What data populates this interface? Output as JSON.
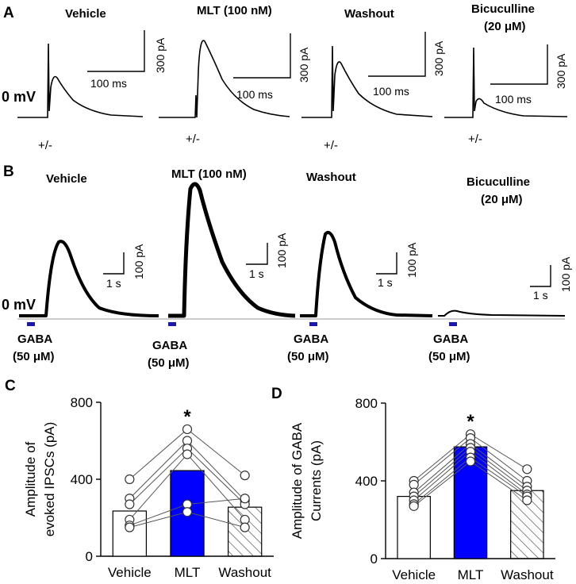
{
  "panelA": {
    "letter": "A",
    "zero_label": "0 mV",
    "stim_label": "+/-",
    "scale_time": "100 ms",
    "scale_amp": "300 pA",
    "conditions": [
      {
        "line1": "Vehicle",
        "line2": ""
      },
      {
        "line1": "MLT (100 nM)",
        "line2": ""
      },
      {
        "line1": "Washout",
        "line2": ""
      },
      {
        "line1": "Bicuculline",
        "line2": "(20 μM)"
      }
    ]
  },
  "panelB": {
    "letter": "B",
    "zero_label": "0 mV",
    "scale_time": "1 s",
    "scale_amp": "100 pA",
    "drug_line1": "GABA",
    "drug_line2": "(50 μM)",
    "drug_bar_color": "#1a1aa6",
    "conditions": [
      {
        "line1": "Vehicle",
        "line2": ""
      },
      {
        "line1": "MLT (100 nM)",
        "line2": ""
      },
      {
        "line1": "Washout",
        "line2": ""
      },
      {
        "line1": "Bicuculline",
        "line2": "(20 μM)"
      }
    ]
  },
  "chart_data": [
    {
      "panel": "C",
      "type": "bar",
      "ylabel_line1": "Amplitude of",
      "ylabel_line2": "evoked IPSCs (pA)",
      "categories": [
        "Vehicle",
        "MLT",
        "Washout"
      ],
      "values": [
        235,
        445,
        255
      ],
      "bar_styles": [
        "open",
        "filled",
        "hatched"
      ],
      "bar_color": "#0000ff",
      "ylim": [
        0,
        800
      ],
      "yticks": [
        "0",
        "400",
        "800"
      ],
      "significance": {
        "category": "MLT",
        "label": "*"
      },
      "individual_series": [
        [
          400,
          660,
          420
        ],
        [
          300,
          600,
          290
        ],
        [
          270,
          560,
          270
        ],
        [
          190,
          530,
          190
        ],
        [
          160,
          270,
          300
        ],
        [
          150,
          230,
          150
        ]
      ]
    },
    {
      "panel": "D",
      "type": "bar",
      "ylabel_line1": "Amplitude of GABA",
      "ylabel_line2": "Currents (pA)",
      "categories": [
        "Vehicle",
        "MLT",
        "Washout"
      ],
      "values": [
        320,
        575,
        350
      ],
      "bar_styles": [
        "open",
        "filled",
        "hatched"
      ],
      "bar_color": "#0000ff",
      "ylim": [
        0,
        800
      ],
      "yticks": [
        "0",
        "400",
        "800"
      ],
      "significance": {
        "category": "MLT",
        "label": "*"
      },
      "individual_series": [
        [
          400,
          640,
          460
        ],
        [
          380,
          620,
          400
        ],
        [
          340,
          590,
          370
        ],
        [
          320,
          570,
          350
        ],
        [
          300,
          550,
          330
        ],
        [
          280,
          520,
          320
        ],
        [
          270,
          500,
          300
        ]
      ]
    }
  ]
}
